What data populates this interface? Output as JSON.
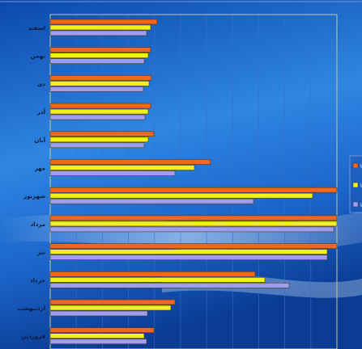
{
  "chart_data": {
    "type": "bar",
    "orientation": "horizontal",
    "title": "",
    "xlabel": "",
    "ylabel": "",
    "categories": [
      "اسفند",
      "بهمن",
      "دی",
      "آذر",
      "آبان",
      "مهر",
      "شهریور",
      "مرداد",
      "تیر",
      "خرداد",
      "اردیبهشت",
      "فروردین"
    ],
    "series": [
      {
        "color": "#f26522",
        "values": [
          132,
          124,
          125,
          124,
          128,
          198,
          354,
          354,
          354,
          253,
          154,
          128
        ]
      },
      {
        "color": "#f2f21b",
        "values": [
          124,
          121,
          122,
          121,
          121,
          178,
          324,
          354,
          342,
          265,
          149,
          116
        ]
      },
      {
        "color": "#9e9ef0",
        "values": [
          119,
          116,
          115,
          117,
          116,
          154,
          251,
          350,
          342,
          295,
          120,
          119
        ]
      }
    ],
    "xlim": [
      0,
      354
    ],
    "grid": true,
    "legend_position": "right"
  },
  "legend": {
    "entries": [
      "۱",
      "۱",
      "۱"
    ]
  },
  "colors": {
    "background_dark": "#0a3f9e",
    "background_light": "#3f8fe6",
    "plot_border": "#c0c8a0",
    "gridline": "#3a6fc8"
  }
}
